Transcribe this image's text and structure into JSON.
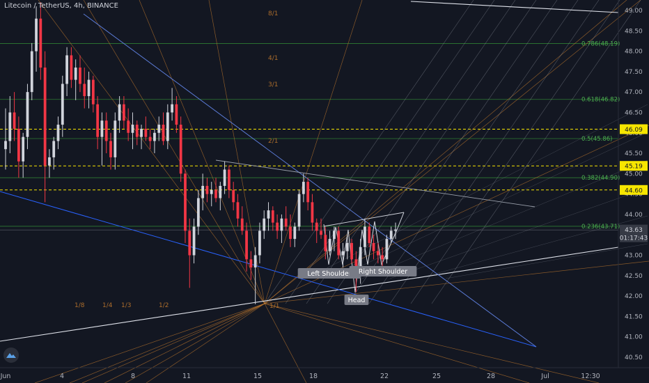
{
  "header": {
    "symbol_title": "Litecoin / TetherUS, 4h, BINANCE"
  },
  "colors": {
    "background": "#131722",
    "axis_text": "#b2b5be",
    "bull_candle": "#d1d4dc",
    "bear_candle": "#f23645",
    "fib_line": "#2e7d32",
    "fib_text": "#4caf50",
    "dashed_level": "#f7e600",
    "gann_fan": "#c77c2d",
    "pitchfork": "#6b7280",
    "trendline_white": "#e0e3eb",
    "trendline_blue": "#2962ff",
    "label_bg": "#787b86",
    "price_tag": "#f7e600",
    "current_price_tag": "#363a45"
  },
  "chart_data": {
    "type": "candlestick",
    "title": "Litecoin / TetherUS, 4h, BINANCE",
    "y_axis": {
      "ticks": [
        "49.00",
        "48.50",
        "48.00",
        "47.50",
        "47.00",
        "46.50",
        "46.00",
        "45.50",
        "45.00",
        "44.50",
        "44.00",
        "43.50",
        "43.00",
        "42.50",
        "42.00",
        "41.50",
        "41.00",
        "40.50"
      ],
      "range": [
        40.3,
        49.2
      ]
    },
    "x_axis": {
      "ticks": [
        "Jun",
        "4",
        "8",
        "11",
        "15",
        "18",
        "22",
        "25",
        "28",
        "Jul",
        "12:30"
      ]
    },
    "price_tags": [
      {
        "label": "46.09",
        "value": 46.09,
        "style": "highlight"
      },
      {
        "label": "45.19",
        "value": 45.19,
        "style": "highlight"
      },
      {
        "label": "44.60",
        "value": 44.6,
        "style": "highlight"
      },
      {
        "label": "43.63",
        "value": 43.63,
        "style": "current"
      },
      {
        "label": "01:17:43",
        "value": 43.44,
        "style": "countdown"
      }
    ],
    "fib_levels": [
      {
        "label": "0.786(48.19)",
        "value": 48.19
      },
      {
        "label": "0.618(46.82)",
        "value": 46.82
      },
      {
        "label": "0.5(45.86)",
        "value": 45.86
      },
      {
        "label": "0.382(44.90)",
        "value": 44.9
      },
      {
        "label": "0.236(43.71)",
        "value": 43.71
      }
    ],
    "dashed_levels": [
      46.09,
      45.19,
      44.6
    ],
    "gann_labels": [
      {
        "label": "8/1"
      },
      {
        "label": "4/1"
      },
      {
        "label": "3/1"
      },
      {
        "label": "2/1"
      },
      {
        "label": "1/1"
      },
      {
        "label": "1/8"
      },
      {
        "label": "1/4"
      },
      {
        "label": "1/3"
      },
      {
        "label": "1/2"
      }
    ],
    "pattern_labels": [
      {
        "label": "Left Shoulder"
      },
      {
        "label": "Right Shoulder"
      },
      {
        "label": "Head"
      }
    ],
    "candles": [
      [
        45.6,
        46.6,
        45.1,
        45.8
      ],
      [
        45.8,
        46.9,
        45.5,
        46.5
      ],
      [
        46.5,
        47.0,
        45.8,
        46.1
      ],
      [
        46.1,
        46.4,
        44.9,
        45.3
      ],
      [
        45.3,
        46.0,
        44.9,
        45.9
      ],
      [
        45.9,
        47.2,
        45.6,
        47.0
      ],
      [
        47.0,
        48.2,
        46.8,
        48.0
      ],
      [
        48.0,
        49.1,
        47.5,
        48.8
      ],
      [
        48.8,
        49.2,
        47.3,
        47.6
      ],
      [
        47.6,
        48.0,
        44.3,
        45.2
      ],
      [
        45.2,
        45.6,
        44.9,
        45.4
      ],
      [
        45.4,
        45.9,
        45.1,
        45.8
      ],
      [
        45.8,
        46.4,
        45.6,
        46.2
      ],
      [
        46.2,
        47.4,
        45.9,
        47.2
      ],
      [
        47.2,
        48.1,
        46.9,
        47.9
      ],
      [
        47.9,
        48.1,
        47.1,
        47.3
      ],
      [
        47.3,
        47.8,
        46.8,
        47.6
      ],
      [
        47.6,
        47.9,
        47.0,
        47.2
      ],
      [
        47.2,
        47.6,
        46.6,
        46.9
      ],
      [
        46.9,
        47.5,
        46.6,
        47.3
      ],
      [
        47.3,
        47.4,
        46.5,
        46.7
      ],
      [
        46.7,
        46.9,
        45.6,
        45.9
      ],
      [
        45.9,
        46.5,
        45.2,
        46.3
      ],
      [
        46.3,
        46.5,
        45.5,
        45.8
      ],
      [
        45.8,
        46.0,
        45.1,
        45.4
      ],
      [
        45.4,
        46.5,
        45.1,
        46.3
      ],
      [
        46.3,
        46.9,
        46.0,
        46.7
      ],
      [
        46.7,
        46.9,
        46.1,
        46.3
      ],
      [
        46.3,
        46.6,
        45.8,
        46.0
      ],
      [
        46.0,
        46.5,
        45.6,
        46.2
      ],
      [
        46.2,
        46.3,
        45.7,
        45.9
      ],
      [
        45.9,
        46.2,
        45.6,
        46.1
      ],
      [
        46.1,
        46.4,
        45.8,
        45.9
      ],
      [
        45.9,
        46.1,
        45.6,
        45.8
      ],
      [
        45.8,
        46.1,
        45.5,
        46.0
      ],
      [
        46.0,
        46.4,
        45.8,
        46.2
      ],
      [
        46.2,
        46.5,
        45.7,
        45.8
      ],
      [
        45.8,
        46.7,
        45.6,
        46.5
      ],
      [
        46.5,
        47.1,
        46.3,
        46.7
      ],
      [
        46.7,
        46.9,
        46.0,
        46.2
      ],
      [
        46.2,
        46.4,
        44.8,
        45.0
      ],
      [
        45.0,
        45.1,
        43.3,
        43.6
      ],
      [
        43.6,
        43.9,
        42.2,
        43.0
      ],
      [
        43.0,
        43.9,
        42.8,
        43.7
      ],
      [
        43.7,
        44.6,
        43.5,
        44.4
      ],
      [
        44.4,
        45.0,
        44.1,
        44.7
      ],
      [
        44.7,
        44.9,
        44.3,
        44.5
      ],
      [
        44.5,
        44.8,
        44.2,
        44.6
      ],
      [
        44.6,
        44.9,
        44.3,
        44.4
      ],
      [
        44.4,
        44.8,
        44.1,
        44.7
      ],
      [
        44.7,
        45.3,
        44.5,
        45.1
      ],
      [
        45.1,
        45.2,
        44.4,
        44.6
      ],
      [
        44.6,
        44.8,
        44.1,
        44.3
      ],
      [
        44.3,
        44.5,
        43.7,
        43.9
      ],
      [
        43.9,
        44.2,
        43.5,
        43.6
      ],
      [
        43.6,
        43.8,
        42.6,
        42.9
      ],
      [
        42.9,
        43.1,
        42.4,
        42.7
      ],
      [
        42.7,
        43.2,
        41.8,
        43.0
      ],
      [
        43.0,
        43.8,
        42.8,
        43.6
      ],
      [
        43.6,
        44.1,
        43.4,
        43.9
      ],
      [
        43.9,
        44.3,
        43.6,
        44.1
      ],
      [
        44.1,
        44.2,
        43.6,
        43.8
      ],
      [
        43.8,
        44.0,
        43.4,
        43.6
      ],
      [
        43.6,
        44.0,
        43.3,
        43.9
      ],
      [
        43.9,
        44.2,
        43.6,
        43.7
      ],
      [
        43.7,
        44.0,
        43.2,
        43.4
      ],
      [
        43.4,
        43.8,
        43.2,
        43.7
      ],
      [
        43.7,
        44.6,
        43.6,
        44.5
      ],
      [
        44.5,
        45.0,
        44.3,
        44.8
      ],
      [
        44.8,
        44.9,
        44.1,
        44.3
      ],
      [
        44.3,
        44.5,
        43.6,
        43.8
      ],
      [
        43.8,
        43.9,
        43.3,
        43.6
      ],
      [
        43.6,
        43.9,
        43.4,
        43.5
      ],
      [
        43.5,
        43.7,
        42.9,
        43.1
      ],
      [
        43.1,
        43.6,
        43.0,
        43.4
      ],
      [
        43.4,
        43.7,
        43.1,
        43.6
      ],
      [
        43.6,
        43.7,
        42.9,
        43.0
      ],
      [
        43.0,
        43.3,
        42.7,
        43.1
      ],
      [
        43.1,
        43.5,
        42.9,
        43.3
      ],
      [
        43.3,
        43.4,
        42.8,
        42.9
      ],
      [
        42.9,
        43.1,
        42.1,
        42.5
      ],
      [
        42.5,
        43.4,
        42.3,
        43.2
      ],
      [
        43.2,
        43.9,
        43.0,
        43.7
      ],
      [
        43.7,
        43.8,
        43.2,
        43.3
      ],
      [
        43.3,
        43.5,
        42.9,
        43.1
      ],
      [
        43.1,
        43.3,
        42.8,
        43.0
      ],
      [
        43.0,
        43.2,
        42.7,
        42.9
      ],
      [
        42.9,
        43.5,
        42.8,
        43.4
      ],
      [
        43.4,
        43.7,
        43.3,
        43.6
      ],
      [
        43.6,
        43.8,
        43.4,
        43.63
      ]
    ]
  }
}
